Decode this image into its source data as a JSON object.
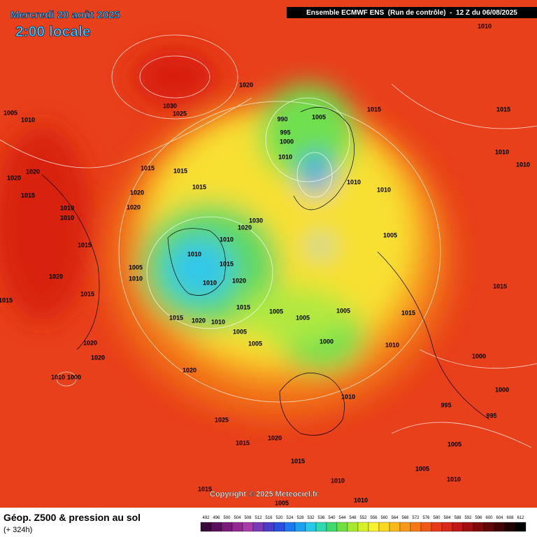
{
  "header": {
    "date": "Mercredi 20 août 2025",
    "time": "2:00 locale",
    "model": "Ensemble ECMWF ENS  (Run de contrôle)  -  12 Z du 06/08/2025"
  },
  "footer": {
    "title": "Géop. Z500 & pression au sol",
    "lead": "(+ 324h)",
    "copyright": "Copyright © 2025 Meteociel.fr"
  },
  "legend": {
    "levels": [
      492,
      496,
      500,
      504,
      508,
      512,
      516,
      520,
      524,
      528,
      532,
      536,
      540,
      544,
      548,
      552,
      556,
      560,
      564,
      568,
      572,
      576,
      580,
      584,
      588,
      592,
      596,
      600,
      604,
      608,
      612
    ],
    "colors": [
      "#3a0a3a",
      "#5a0f5a",
      "#7a1a7a",
      "#932a93",
      "#a83ca8",
      "#7a3ab8",
      "#4a3cc8",
      "#2a50e0",
      "#1e78f0",
      "#1ea0f0",
      "#28c8e8",
      "#30d8b0",
      "#40d870",
      "#70e040",
      "#a8e830",
      "#d8f028",
      "#f8f030",
      "#f8d820",
      "#f8b818",
      "#f89818",
      "#f87818",
      "#f05818",
      "#e83a18",
      "#d82818",
      "#c01818",
      "#a01010",
      "#800a0a",
      "#600808",
      "#400404",
      "#200202",
      "#000000"
    ]
  },
  "pressure_labels": [
    "1010",
    "1020",
    "1030",
    "1025",
    "1005",
    "1010",
    "990",
    "1005",
    "995",
    "1000",
    "1015",
    "1015",
    "1010",
    "1010",
    "1010",
    "1010",
    "1010",
    "1020",
    "1020",
    "1015",
    "1015",
    "1015",
    "1030",
    "1020",
    "1010",
    "1010",
    "1015",
    "1010",
    "1020",
    "1005",
    "1005",
    "1010",
    "1015",
    "1015",
    "1020",
    "1010",
    "1005",
    "1005",
    "1005",
    "1005",
    "1005",
    "1000",
    "1015",
    "1010",
    "1020",
    "1020",
    "1020",
    "1025",
    "1015",
    "1020",
    "1010",
    "1015",
    "1015",
    "1010",
    "1005",
    "1005",
    "1010",
    "1005",
    "1010",
    "1010",
    "1000",
    "1015",
    "1000",
    "995",
    "995",
    "1000",
    "1015",
    "1020",
    "1015",
    "1015",
    "1020",
    "1010",
    "1010",
    "1015",
    "1020"
  ]
}
